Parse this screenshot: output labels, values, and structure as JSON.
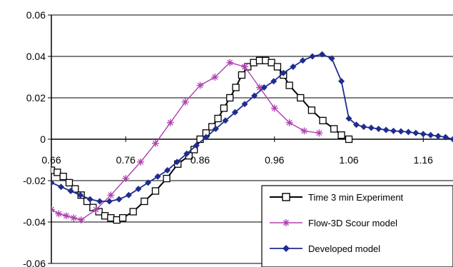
{
  "chart_data": {
    "type": "line",
    "title": "",
    "xlabel": "",
    "ylabel": "",
    "xlim": [
      0.66,
      1.2
    ],
    "ylim": [
      -0.06,
      0.06
    ],
    "x_ticks": [
      0.66,
      0.76,
      0.86,
      0.96,
      1.06,
      1.16
    ],
    "x_tick_labels": [
      "0.66",
      "0.76",
      "0.86",
      "0.96",
      "1.06",
      "1.16"
    ],
    "y_ticks": [
      0.06,
      0.04,
      0.02,
      0,
      -0.02,
      -0.04,
      -0.06
    ],
    "y_tick_labels": [
      "0.06",
      "0.04",
      "0.02",
      "0",
      "-0.02",
      "-0.04",
      "-0.06"
    ],
    "grid": "horizontal",
    "legend_position": "bottom-right",
    "series": [
      {
        "name": "Time 3 min Experiment",
        "color": "#000000",
        "marker": "open-square",
        "x": [
          0.66,
          0.668,
          0.676,
          0.684,
          0.692,
          0.7,
          0.708,
          0.716,
          0.724,
          0.732,
          0.74,
          0.748,
          0.756,
          0.77,
          0.785,
          0.8,
          0.815,
          0.83,
          0.845,
          0.852,
          0.86,
          0.868,
          0.876,
          0.884,
          0.892,
          0.9,
          0.908,
          0.916,
          0.924,
          0.932,
          0.94,
          0.948,
          0.956,
          0.964,
          0.972,
          0.98,
          0.995,
          1.01,
          1.025,
          1.04,
          1.05,
          1.06
        ],
        "values": [
          -0.015,
          -0.016,
          -0.018,
          -0.021,
          -0.024,
          -0.027,
          -0.03,
          -0.033,
          -0.035,
          -0.037,
          -0.038,
          -0.039,
          -0.038,
          -0.035,
          -0.03,
          -0.025,
          -0.019,
          -0.012,
          -0.008,
          -0.005,
          0.0,
          0.003,
          0.006,
          0.01,
          0.015,
          0.02,
          0.025,
          0.031,
          0.035,
          0.037,
          0.038,
          0.038,
          0.037,
          0.035,
          0.031,
          0.026,
          0.02,
          0.014,
          0.009,
          0.005,
          0.002,
          0.0
        ]
      },
      {
        "name": "Flow-3D Scour model",
        "color": "#b040b0",
        "marker": "star",
        "x": [
          0.66,
          0.67,
          0.68,
          0.69,
          0.7,
          0.72,
          0.74,
          0.76,
          0.78,
          0.8,
          0.82,
          0.84,
          0.86,
          0.88,
          0.9,
          0.92,
          0.94,
          0.96,
          0.98,
          1.0,
          1.02
        ],
        "values": [
          -0.034,
          -0.036,
          -0.037,
          -0.038,
          -0.039,
          -0.034,
          -0.027,
          -0.019,
          -0.011,
          -0.002,
          0.008,
          0.018,
          0.026,
          0.03,
          0.037,
          0.035,
          0.025,
          0.015,
          0.008,
          0.004,
          0.003
        ]
      },
      {
        "name": "Developed model",
        "color": "#1f2c8f",
        "marker": "filled-diamond",
        "x": [
          0.66,
          0.673,
          0.686,
          0.699,
          0.712,
          0.725,
          0.738,
          0.751,
          0.764,
          0.777,
          0.79,
          0.803,
          0.816,
          0.829,
          0.842,
          0.855,
          0.868,
          0.881,
          0.894,
          0.907,
          0.92,
          0.933,
          0.946,
          0.959,
          0.972,
          0.985,
          0.998,
          1.011,
          1.024,
          1.037,
          1.05,
          1.06,
          1.07,
          1.08,
          1.09,
          1.1,
          1.11,
          1.12,
          1.13,
          1.14,
          1.15,
          1.16,
          1.17,
          1.18,
          1.19,
          1.2
        ],
        "values": [
          -0.021,
          -0.023,
          -0.025,
          -0.027,
          -0.029,
          -0.03,
          -0.03,
          -0.029,
          -0.027,
          -0.024,
          -0.021,
          -0.018,
          -0.015,
          -0.011,
          -0.007,
          -0.003,
          0.001,
          0.005,
          0.009,
          0.013,
          0.017,
          0.021,
          0.025,
          0.028,
          0.032,
          0.035,
          0.038,
          0.04,
          0.041,
          0.039,
          0.028,
          0.01,
          0.007,
          0.006,
          0.0055,
          0.005,
          0.0045,
          0.004,
          0.0038,
          0.0035,
          0.003,
          0.0025,
          0.002,
          0.0015,
          0.001,
          0.0
        ]
      }
    ]
  }
}
